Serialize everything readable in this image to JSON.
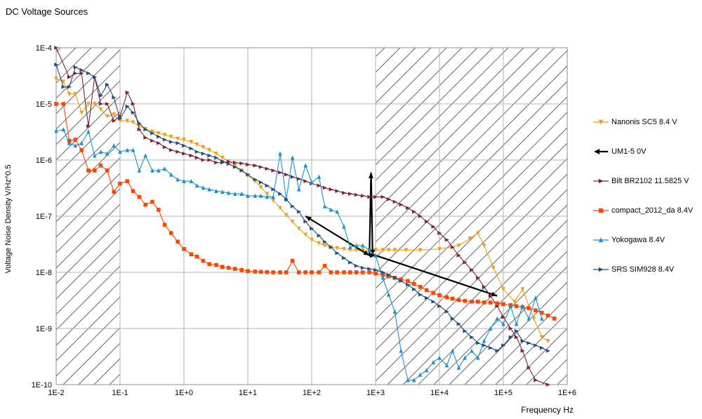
{
  "chart_data": {
    "type": "line",
    "title": "DC Voltage Sources",
    "xlabel": "Frequency Hz",
    "ylabel": "Voltage Noise Density V/Hz^0.5",
    "x_scale": "log",
    "y_scale": "log",
    "xlim": [
      0.01,
      1000000
    ],
    "ylim": [
      1e-10,
      0.0001
    ],
    "x_tick_labels": [
      "1E-2",
      "1E-1",
      "1E+0",
      "1E+1",
      "1E+2",
      "1E+3",
      "1E+4",
      "1E+5",
      "1E+6"
    ],
    "y_tick_labels": [
      "1E-10",
      "1E-9",
      "1E-8",
      "1E-7",
      "1E-6",
      "1E-5",
      "1E-4"
    ],
    "grid": true,
    "legend_position": "right",
    "hatched_regions": [
      [
        0.01,
        0.1
      ],
      [
        1000,
        1000000
      ]
    ],
    "series": [
      {
        "name": "Nanonis SC5 8.4 V",
        "color": "#f39c12",
        "marker": "triangle-down",
        "x": [
          0.01,
          0.013,
          0.016,
          0.02,
          0.025,
          0.032,
          0.04,
          0.05,
          0.063,
          0.08,
          0.1,
          0.13,
          0.16,
          0.2,
          0.25,
          0.32,
          0.4,
          0.5,
          0.63,
          0.8,
          1,
          1.3,
          1.6,
          2,
          2.5,
          3.2,
          4,
          5,
          6.3,
          8,
          10,
          13,
          16,
          20,
          25,
          32,
          40,
          50,
          63,
          80,
          100,
          130,
          160,
          200,
          250,
          320,
          400,
          500,
          630,
          800,
          1000,
          1300,
          1600,
          2000,
          3000,
          5000,
          10000,
          20000,
          30000,
          40000,
          50000,
          70000,
          100000,
          150000,
          200000,
          300000,
          400000,
          500000
        ],
        "y": [
          2.8e-05,
          2.5e-05,
          1.5e-05,
          1.5e-05,
          7e-06,
          1e-05,
          1e-05,
          8e-06,
          6e-06,
          6.5e-06,
          5e-06,
          5e-06,
          4.7e-06,
          4e-06,
          3.6e-06,
          3.2e-06,
          3e-06,
          2.8e-06,
          2.6e-06,
          2.4e-06,
          2.3e-06,
          2.1e-06,
          1.9e-06,
          1.7e-06,
          1.5e-06,
          1.3e-06,
          1.1e-06,
          9.5e-07,
          8e-07,
          6.5e-07,
          5.3e-07,
          4.2e-07,
          3.3e-07,
          2.5e-07,
          1.9e-07,
          1.4e-07,
          1.05e-07,
          8e-08,
          6e-08,
          4.7e-08,
          3.8e-08,
          3.3e-08,
          3e-08,
          2.8e-08,
          2.7e-08,
          2.6e-08,
          2.5e-08,
          2.5e-08,
          2.5e-08,
          2.5e-08,
          2.5e-08,
          2.5e-08,
          2.5e-08,
          2.5e-08,
          2.5e-08,
          2.5e-08,
          2.6e-08,
          3e-08,
          4e-08,
          5e-08,
          3e-08,
          1.2e-08,
          5e-09,
          3e-09,
          5e-09,
          1.5e-09,
          7e-10,
          6e-10
        ]
      },
      {
        "name": "UM1-5 0V",
        "color": "#000000",
        "marker": "arrow",
        "x": [
          80,
          800,
          850,
          900,
          1000,
          80000
        ],
        "y": [
          1e-07,
          2e-08,
          6e-07,
          2e-08,
          2e-08,
          3.8e-09
        ]
      },
      {
        "name": "Bilt BR2102 11.5825 V",
        "color": "#7f1f3a",
        "marker": "triangle-right",
        "x": [
          0.01,
          0.016,
          0.02,
          0.025,
          0.032,
          0.04,
          0.05,
          0.063,
          0.08,
          0.1,
          0.13,
          0.16,
          0.2,
          0.25,
          0.32,
          0.4,
          0.5,
          0.63,
          0.8,
          1,
          1.3,
          1.6,
          2,
          2.5,
          3.2,
          4,
          5,
          6.3,
          8,
          10,
          13,
          16,
          20,
          25,
          32,
          40,
          50,
          63,
          80,
          100,
          130,
          160,
          200,
          250,
          320,
          400,
          500,
          630,
          800,
          1000,
          1300,
          1600,
          2000,
          2500,
          3200,
          4000,
          5000,
          6300,
          8000,
          10000,
          13000,
          16000,
          20000,
          25000,
          32000,
          40000,
          50000,
          63000,
          80000,
          100000,
          130000,
          160000,
          200000,
          250000,
          320000,
          500000
        ],
        "y": [
          0.0001,
          3e-05,
          3.5e-05,
          3.5e-05,
          4e-06,
          3e-05,
          1e-05,
          1e-05,
          5e-06,
          6e-06,
          1.6e-05,
          1e-05,
          3.5e-06,
          2.5e-06,
          2.2e-06,
          2e-06,
          1.7e-06,
          1.5e-06,
          1.4e-06,
          1.3e-06,
          1.2e-06,
          1.1e-06,
          1e-06,
          1e-06,
          9e-07,
          9e-07,
          9.3e-07,
          9e-07,
          8.7e-07,
          8.3e-07,
          8e-07,
          7.5e-07,
          7e-07,
          6.5e-07,
          6e-07,
          5.5e-07,
          5e-07,
          4.6e-07,
          4.2e-07,
          3.8e-07,
          3.5e-07,
          3.2e-07,
          3e-07,
          2.8e-07,
          2.6e-07,
          2.5e-07,
          2.4e-07,
          2.3e-07,
          2.2e-07,
          2.2e-07,
          2.2e-07,
          2e-07,
          1.8e-07,
          1.6e-07,
          1.4e-07,
          1.2e-07,
          1e-07,
          8e-08,
          6.5e-08,
          5e-08,
          3.8e-08,
          2.8e-08,
          2e-08,
          1.5e-08,
          1.1e-08,
          8e-09,
          5.5e-09,
          3.8e-09,
          2.5e-09,
          1.6e-09,
          1e-09,
          7e-10,
          4e-10,
          2e-10,
          1.2e-10,
          1e-10
        ]
      },
      {
        "name": "compact_2012_da  8.4V",
        "color": "#ff4500",
        "marker": "square",
        "x": [
          0.01,
          0.013,
          0.016,
          0.02,
          0.025,
          0.032,
          0.04,
          0.05,
          0.063,
          0.08,
          0.1,
          0.13,
          0.16,
          0.2,
          0.25,
          0.32,
          0.4,
          0.5,
          0.63,
          0.8,
          1,
          1.3,
          1.6,
          2,
          2.5,
          3.2,
          4,
          5,
          6.3,
          8,
          10,
          13,
          16,
          20,
          25,
          32,
          40,
          50,
          63,
          80,
          100,
          130,
          160,
          200,
          250,
          320,
          400,
          500,
          630,
          800,
          1000,
          1300,
          1600,
          2000,
          2500,
          3200,
          4000,
          5000,
          6300,
          8000,
          10000,
          13000,
          16000,
          20000,
          25000,
          32000,
          40000,
          50000,
          63000,
          80000,
          100000,
          130000,
          160000,
          200000,
          250000,
          320000,
          400000,
          500000,
          630000
        ],
        "y": [
          1e-05,
          1e-05,
          2.2e-06,
          2.3e-06,
          1.5e-06,
          6.5e-07,
          6.5e-07,
          8e-07,
          6.5e-07,
          2.7e-07,
          3.8e-07,
          4.2e-07,
          2.8e-07,
          2.2e-07,
          1.6e-07,
          1.8e-07,
          1.3e-07,
          7e-08,
          5e-08,
          3.5e-08,
          2.6e-08,
          2.1e-08,
          1.9e-08,
          1.6e-08,
          1.4e-08,
          1.35e-08,
          1.25e-08,
          1.2e-08,
          1.15e-08,
          1.1e-08,
          1.05e-08,
          1.03e-08,
          1.02e-08,
          1.01e-08,
          1e-08,
          1e-08,
          1e-08,
          1.6e-08,
          1e-08,
          1e-08,
          1e-08,
          1e-08,
          1.3e-08,
          1e-08,
          1e-08,
          1e-08,
          1e-08,
          1e-08,
          1e-08,
          1e-08,
          9.5e-09,
          9e-09,
          8.5e-09,
          8e-09,
          7.5e-09,
          7e-09,
          6.2e-09,
          5.5e-09,
          4.8e-09,
          4.3e-09,
          3.9e-09,
          3.6e-09,
          3.4e-09,
          3.2e-09,
          3.1e-09,
          3e-09,
          3e-09,
          2.9e-09,
          2.9e-09,
          2.8e-09,
          2.7e-09,
          2.6e-09,
          2.5e-09,
          2.4e-09,
          2.3e-09,
          2.1e-09,
          1.9e-09,
          1.7e-09,
          1.5e-09
        ]
      },
      {
        "name": "Yokogawa 8.4V",
        "color": "#1a8fd1",
        "marker": "triangle-up",
        "x": [
          0.01,
          0.013,
          0.016,
          0.02,
          0.025,
          0.032,
          0.04,
          0.05,
          0.063,
          0.08,
          0.1,
          0.13,
          0.16,
          0.2,
          0.25,
          0.32,
          0.4,
          0.5,
          0.63,
          0.8,
          1,
          1.3,
          1.6,
          2,
          2.5,
          3.2,
          4,
          5,
          6.3,
          8,
          10,
          13,
          16,
          20,
          25,
          32,
          40,
          50,
          63,
          80,
          100,
          130,
          160,
          200,
          250,
          320,
          400,
          500,
          630,
          800,
          1000,
          1300,
          1600,
          2000,
          2500,
          3200,
          4000,
          5000,
          6300,
          8000,
          10000,
          13000,
          16000,
          20000,
          25000,
          32000,
          40000,
          50000,
          63000,
          80000,
          100000,
          130000,
          160000,
          200000,
          250000,
          320000,
          400000
        ],
        "y": [
          3.3e-06,
          3.5e-06,
          2e-06,
          1.8e-06,
          2e-06,
          3.2e-06,
          1.2e-06,
          1.4e-06,
          1.3e-06,
          1.8e-06,
          1.4e-06,
          1.5e-06,
          1.5e-06,
          6.5e-07,
          1.2e-06,
          6.5e-07,
          6.5e-07,
          7e-07,
          5.5e-07,
          4.5e-07,
          4.2e-07,
          4.2e-07,
          3.5e-07,
          3.2e-07,
          3e-07,
          2.8e-07,
          2.7e-07,
          2.6e-07,
          2.5e-07,
          2.5e-07,
          2.3e-07,
          2.3e-07,
          2.3e-07,
          2.2e-07,
          2.2e-07,
          1.3e-06,
          2e-07,
          1.1e-06,
          3e-07,
          8e-07,
          4e-07,
          5e-07,
          1.5e-07,
          1.3e-07,
          1.2e-07,
          6.5e-08,
          2.8e-08,
          3e-08,
          3e-08,
          2.5e-08,
          2e-08,
          8e-09,
          4e-09,
          2e-09,
          4e-10,
          1.2e-10,
          1.2e-10,
          1.5e-10,
          1.8e-10,
          2.5e-10,
          3e-10,
          2.2e-10,
          4e-10,
          2e-10,
          3e-10,
          4e-10,
          3e-10,
          6e-10,
          1e-09,
          1.5e-09,
          1.2e-09,
          2.5e-09,
          1.2e-09,
          2.5e-09,
          1.5e-09,
          3.5e-09,
          1.5e-09
        ]
      },
      {
        "name": "SRS SIM928 8.4V",
        "color": "#1f4e79",
        "marker": "triangle-right",
        "x": [
          0.01,
          0.013,
          0.016,
          0.02,
          0.025,
          0.032,
          0.04,
          0.05,
          0.063,
          0.08,
          0.1,
          0.13,
          0.16,
          0.2,
          0.25,
          0.32,
          0.4,
          0.5,
          0.63,
          0.8,
          1,
          1.3,
          1.6,
          2,
          2.5,
          3.2,
          4,
          5,
          6.3,
          8,
          10,
          13,
          16,
          20,
          25,
          32,
          40,
          50,
          63,
          80,
          100,
          130,
          160,
          200,
          250,
          320,
          400,
          500,
          630,
          800,
          1000,
          1300,
          1600,
          2000,
          2500,
          3200,
          4000,
          5000,
          6300,
          8000,
          10000,
          13000,
          16000,
          20000,
          25000,
          32000,
          40000,
          50000,
          63000,
          80000,
          100000,
          130000,
          160000,
          200000,
          250000,
          320000,
          400000,
          500000
        ],
        "y": [
          5e-05,
          2e-05,
          2e-05,
          4.5e-05,
          4e-05,
          3.5e-05,
          3e-05,
          1.4e-05,
          2.2e-05,
          1.3e-05,
          5.5e-06,
          9e-06,
          7e-06,
          4.5e-06,
          3.5e-06,
          3e-06,
          2.6e-06,
          2.3e-06,
          2.1e-06,
          2e-06,
          1.8e-06,
          1.6e-06,
          1.4e-06,
          1.3e-06,
          1.2e-06,
          1.1e-06,
          9.5e-07,
          8.5e-07,
          7.5e-07,
          6.5e-07,
          5.5e-07,
          4.5e-07,
          4e-07,
          3.5e-07,
          3e-07,
          2.5e-07,
          2e-07,
          1.5e-07,
          1.2e-07,
          8e-08,
          6e-08,
          4.5e-08,
          3.5e-08,
          2.8e-08,
          2.2e-08,
          1.8e-08,
          1.5e-08,
          1.3e-08,
          1.2e-08,
          1.15e-08,
          1.1e-08,
          1e-08,
          9e-09,
          8e-09,
          7e-09,
          6e-09,
          5e-09,
          4e-09,
          3.5e-09,
          3e-09,
          2.5e-09,
          2e-09,
          1.5e-09,
          1.2e-09,
          9e-10,
          7e-10,
          5.5e-10,
          5e-10,
          4.5e-10,
          4e-10,
          5e-10,
          7e-10,
          9e-10,
          6e-10,
          5.5e-10,
          5e-10,
          4.5e-10,
          4e-10
        ]
      }
    ]
  }
}
